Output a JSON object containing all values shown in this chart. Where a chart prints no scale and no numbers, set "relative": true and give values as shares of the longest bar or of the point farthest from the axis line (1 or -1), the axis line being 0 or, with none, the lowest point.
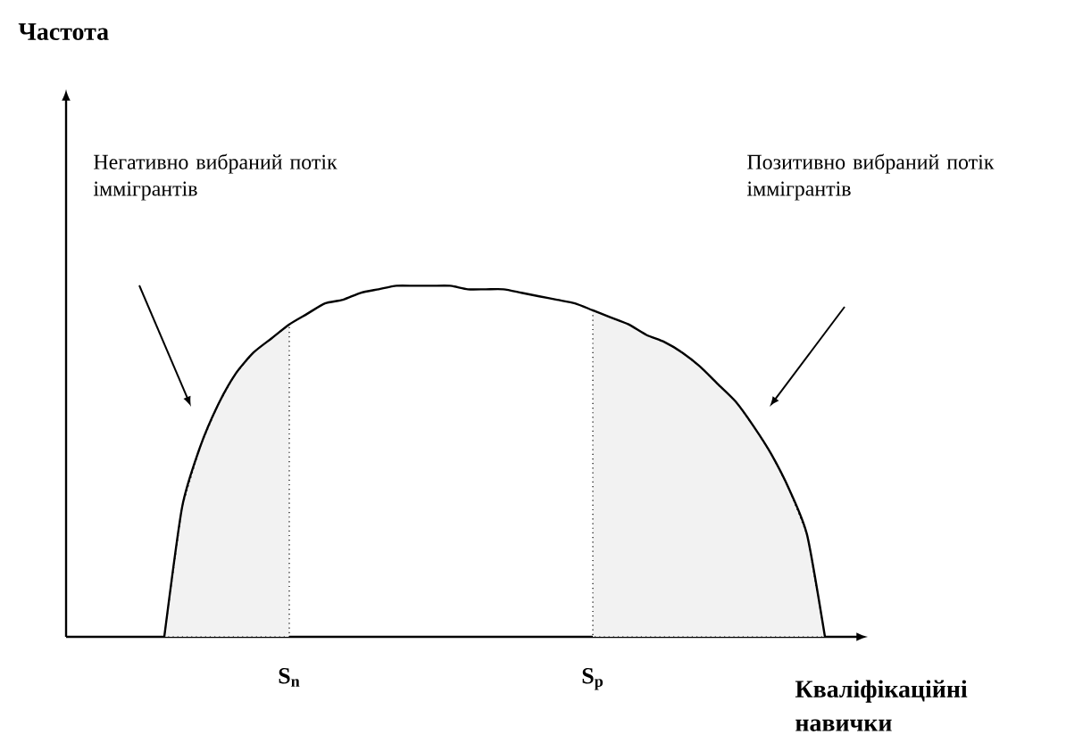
{
  "chart_data": {
    "type": "line",
    "relative": true,
    "line_style": "solid",
    "xlabel": "Кваліфікаційні навички",
    "categories": [
      null,
      null,
      null,
      null,
      null,
      null,
      null,
      "S$_{n}$",
      null,
      null,
      null,
      null,
      null,
      null,
      null,
      null,
      null,
      null,
      null,
      null,
      null,
      null,
      null,
      null,
      "S$_{p}$",
      null,
      null,
      null,
      null,
      null,
      null,
      null,
      null,
      null,
      null,
      null,
      null,
      null
    ],
    "series": [
      {
        "color": "#000000",
        "values": [
          0,
          0.37,
          0.54,
          0.66,
          0.75,
          0.81,
          0.85,
          0.89,
          0.92,
          0.95,
          0.96,
          0.98,
          0.99,
          1,
          1,
          1,
          1,
          0.99,
          0.99,
          0.99,
          0.98,
          0.97,
          0.96,
          0.95,
          0.93,
          0.91,
          0.89,
          0.86,
          0.84,
          0.81,
          0.77,
          0.72,
          0.67,
          0.6,
          0.52,
          0.42,
          0.29,
          0
        ]
      },
      {
        "type": "area",
        "color": "#f2f2f2",
        "values": [
          0,
          0.37,
          0.54,
          0.66,
          0.75,
          0.81,
          0.85,
          0.89,
          null,
          null,
          null,
          null,
          null,
          null,
          null,
          null,
          null,
          null,
          null,
          null,
          null,
          null,
          null,
          null,
          null,
          null,
          null,
          null,
          null,
          null,
          null,
          null,
          null,
          null,
          null,
          null,
          null,
          null
        ]
      },
      {
        "type": "area",
        "color": "#f2f2f2",
        "values": [
          null,
          null,
          null,
          null,
          null,
          null,
          null,
          null,
          null,
          null,
          null,
          null,
          null,
          null,
          null,
          null,
          null,
          null,
          null,
          null,
          null,
          null,
          null,
          null,
          0.93,
          0.91,
          0.89,
          0.86,
          0.84,
          0.81,
          0.77,
          0.72,
          0.67,
          0.6,
          0.52,
          0.42,
          0.29,
          0
        ]
      }
    ],
    "tick_labels": "x",
    "annotations": [
      "Частота",
      "Негативно вибраний потік іммігрантів",
      "Позитивно вибраний потік іммігрантів"
    ]
  }
}
